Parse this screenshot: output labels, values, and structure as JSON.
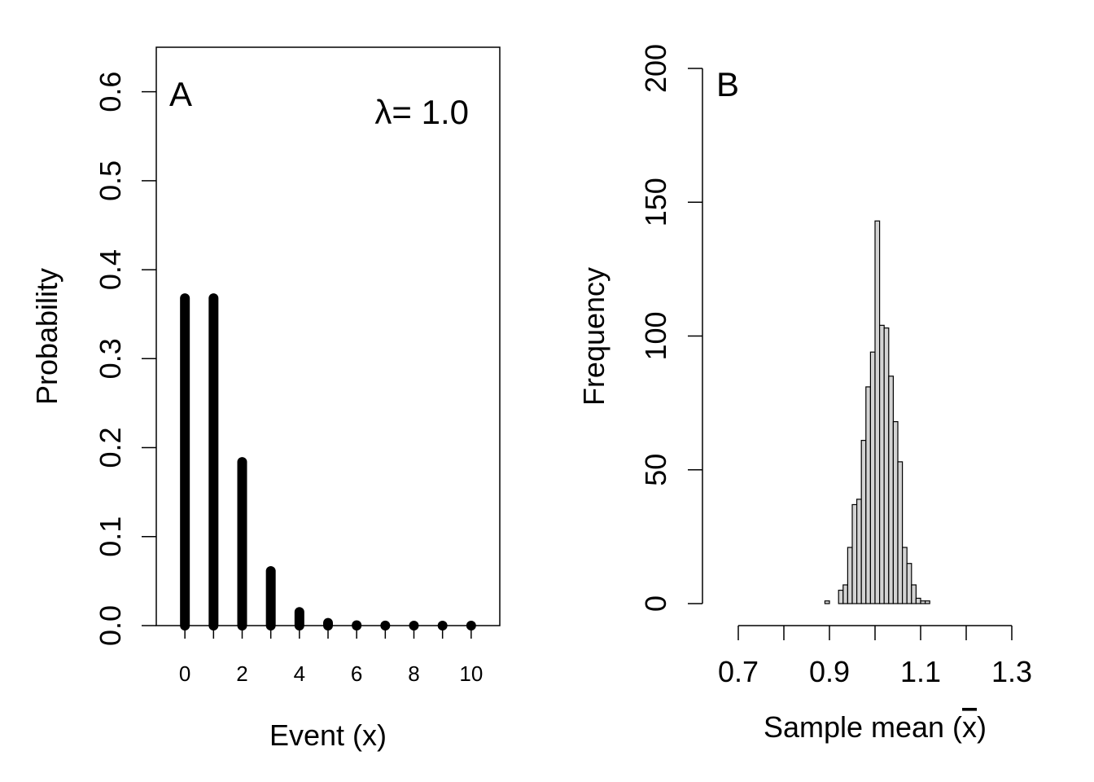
{
  "chart_data": [
    {
      "type": "bar",
      "panel_label": "A",
      "annotation": "λ= 1.0",
      "xlabel": "Event (x)",
      "ylabel": "Probability",
      "xlim": [
        -1,
        11
      ],
      "ylim": [
        0,
        0.65
      ],
      "x_ticks": [
        0,
        2,
        4,
        6,
        8,
        10
      ],
      "y_ticks": [
        "0.0",
        "0.1",
        "0.2",
        "0.3",
        "0.4",
        "0.5",
        "0.6"
      ],
      "categories": [
        0,
        1,
        2,
        3,
        4,
        5,
        6,
        7,
        8,
        9,
        10
      ],
      "values": [
        0.3679,
        0.3679,
        0.1839,
        0.0613,
        0.0153,
        0.0031,
        0.0005,
        0.0001,
        0.0,
        0.0,
        0.0
      ]
    },
    {
      "type": "bar",
      "subtype": "histogram",
      "panel_label": "B",
      "xlabel": "Sample mean (x̄)",
      "xlabel_prefix": "Sample mean (",
      "xlabel_var": "x",
      "xlabel_suffix": ")",
      "ylabel": "Frequency",
      "xlim": [
        0.7,
        1.3
      ],
      "ylim": [
        0,
        200
      ],
      "x_ticks": [
        "0.7",
        "0.9",
        "1.1",
        "1.3"
      ],
      "x_minor_ticks": [
        0.8,
        1.0,
        1.2
      ],
      "y_ticks": [
        "0",
        "50",
        "100",
        "150",
        "200"
      ],
      "bin_width": 0.01,
      "bin_starts": [
        0.89,
        0.9,
        0.91,
        0.92,
        0.93,
        0.94,
        0.95,
        0.96,
        0.97,
        0.98,
        0.99,
        1.0,
        1.01,
        1.02,
        1.03,
        1.04,
        1.05,
        1.06,
        1.07,
        1.08,
        1.09,
        1.1,
        1.11
      ],
      "values": [
        1,
        0,
        0,
        5,
        7,
        21,
        37,
        39,
        61,
        81,
        94,
        143,
        104,
        103,
        85,
        68,
        53,
        21,
        15,
        7,
        2,
        1,
        1
      ]
    }
  ]
}
